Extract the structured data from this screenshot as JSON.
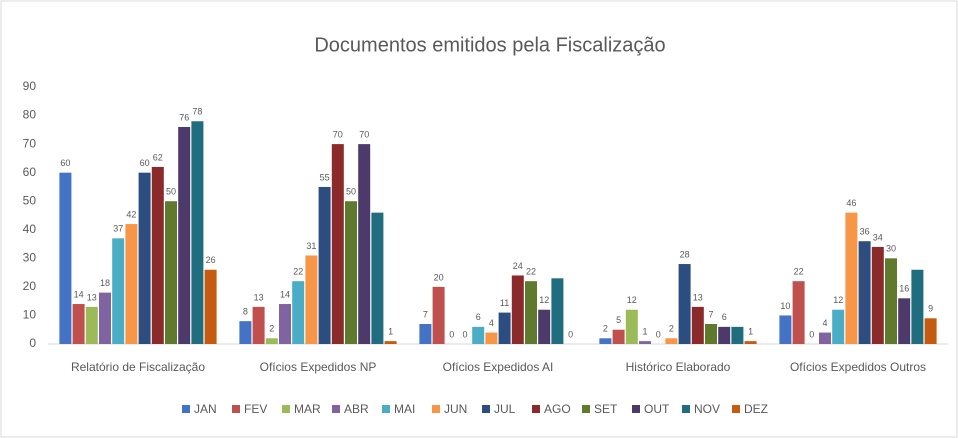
{
  "chart_data": {
    "type": "bar",
    "title": "Documentos emitidos pela Fiscalização",
    "categories": [
      "Relatório de Fiscalização",
      "Ofícios Expedidos NP",
      "Ofícios Expedidos AI",
      "Histórico Elaborado",
      "Ofícios Expedidos Outros"
    ],
    "series": [
      {
        "name": "JAN",
        "color": "#4472c4",
        "values": [
          60,
          8,
          7,
          2,
          10
        ]
      },
      {
        "name": "FEV",
        "color": "#c0504d",
        "values": [
          14,
          13,
          20,
          5,
          22
        ]
      },
      {
        "name": "MAR",
        "color": "#9bbb59",
        "values": [
          13,
          2,
          0,
          12,
          0
        ]
      },
      {
        "name": "ABR",
        "color": "#8064a2",
        "values": [
          18,
          14,
          0,
          1,
          4
        ]
      },
      {
        "name": "MAI",
        "color": "#4bacc6",
        "values": [
          37,
          22,
          6,
          0,
          12
        ]
      },
      {
        "name": "JUN",
        "color": "#f79646",
        "values": [
          42,
          31,
          4,
          2,
          46
        ]
      },
      {
        "name": "JUL",
        "color": "#2c4d7f",
        "values": [
          60,
          55,
          11,
          28,
          36
        ]
      },
      {
        "name": "AGO",
        "color": "#8b2a2a",
        "values": [
          62,
          70,
          24,
          13,
          34
        ]
      },
      {
        "name": "SET",
        "color": "#5f7a2c",
        "values": [
          50,
          50,
          22,
          7,
          30
        ]
      },
      {
        "name": "OUT",
        "color": "#4d3a6b",
        "values": [
          76,
          70,
          12,
          6,
          16
        ]
      },
      {
        "name": "NOV",
        "color": "#1f6d7e",
        "values": [
          78,
          46,
          23,
          6,
          26
        ],
        "value_labels": [
          "78",
          null,
          null,
          null,
          null
        ]
      },
      {
        "name": "DEZ",
        "color": "#c55a11",
        "values": [
          26,
          1,
          0,
          1,
          9
        ]
      }
    ],
    "ylim": [
      0,
      90
    ],
    "yticks": [
      0,
      10,
      20,
      30,
      40,
      50,
      60,
      70,
      80,
      90
    ],
    "grid": false,
    "legend": "bottom"
  }
}
